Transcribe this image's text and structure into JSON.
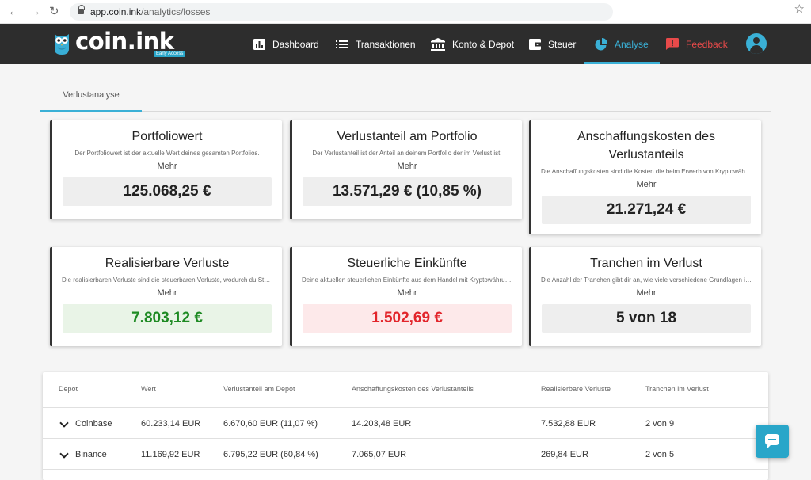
{
  "browser": {
    "url_host": "app.coin.ink",
    "url_path": "/analytics/losses"
  },
  "header": {
    "brand": "coin.ink",
    "badge": "Early Access",
    "nav": [
      {
        "label": "Dashboard",
        "icon": "bar-chart-icon"
      },
      {
        "label": "Transaktionen",
        "icon": "list-icon"
      },
      {
        "label": "Konto & Depot",
        "icon": "bank-icon"
      },
      {
        "label": "Steuer",
        "icon": "wallet-icon"
      },
      {
        "label": "Analyse",
        "icon": "pie-chart-icon",
        "active": true
      },
      {
        "label": "Feedback",
        "icon": "feedback-icon"
      }
    ],
    "accent_color": "#3ab0d6",
    "feedback_color": "#e84a4a"
  },
  "tabs": [
    "Verlustanalyse"
  ],
  "cards": [
    {
      "title": "Portfoliowert",
      "description": "Der Portfoliowert ist der aktuelle Wert deines gesamten Portfolios.",
      "more": "Mehr",
      "value": "125.068,25 €",
      "style": "neutral"
    },
    {
      "title": "Verlustanteil am Portfolio",
      "description": "Der Verlustanteil ist der Anteil an deinem Portfolio der im Verlust ist.",
      "more": "Mehr",
      "value": "13.571,29 € (10,85 %)",
      "style": "neutral"
    },
    {
      "title": "Anschaffungskosten des Verlustanteils",
      "description": "Die Anschaffungskosten sind die Kosten die beim Erwerb von Kryptowährungen entstehen.",
      "more": "Mehr",
      "value": "21.271,24 €",
      "style": "neutral"
    },
    {
      "title": "Realisierbare Verluste",
      "description": "Die realisierbaren Verluste sind die steuerbaren Verluste, wodurch du Steuern sparen kannst.",
      "more": "Mehr",
      "value": "7.803,12 €",
      "style": "green"
    },
    {
      "title": "Steuerliche Einkünfte",
      "description": "Deine aktuellen steuerlichen Einkünfte aus dem Handel mit Kryptowährungen.",
      "more": "Mehr",
      "value": "1.502,69 €",
      "style": "red"
    },
    {
      "title": "Tranchen im Verlust",
      "description": "Die Anzahl der Tranchen gibt dir an, wie viele verschiedene Grundlagen im Verlust sind.",
      "more": "Mehr",
      "value": "5 von 18",
      "style": "neutral"
    }
  ],
  "table": {
    "headers": [
      "Depot",
      "Wert",
      "Verlustanteil am Depot",
      "Anschaffungskosten des Verlustanteils",
      "Realisierbare Verluste",
      "Tranchen im Verlust"
    ],
    "rows": [
      [
        "Coinbase",
        "60.233,14 EUR",
        "6.670,60 EUR (11,07 %)",
        "14.203,48 EUR",
        "7.532,88 EUR",
        "2 von 9"
      ],
      [
        "Binance",
        "11.169,92 EUR",
        "6.795,22 EUR (60,84 %)",
        "7.065,07 EUR",
        "269,84 EUR",
        "2 von 5"
      ]
    ]
  }
}
